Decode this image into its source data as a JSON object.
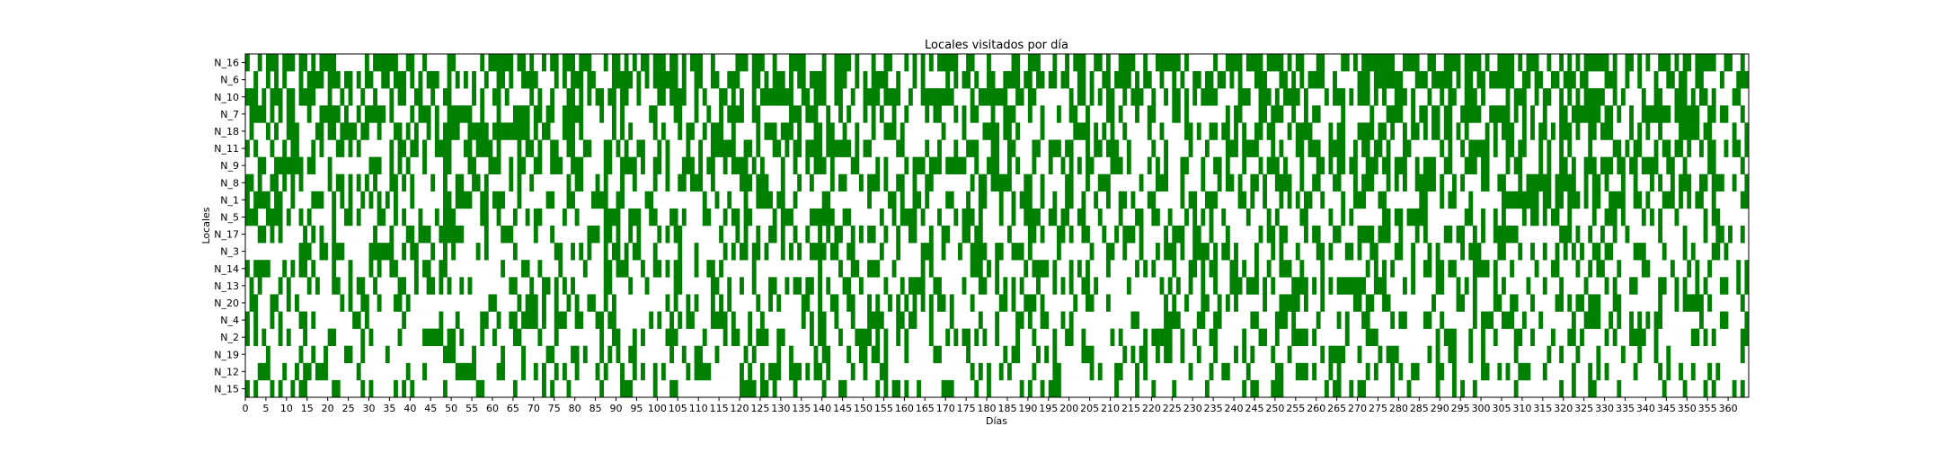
{
  "chart_data": {
    "type": "heatmap",
    "title": "Locales visitados por día",
    "xlabel": "Días",
    "ylabel": "Locales",
    "xlim": [
      0,
      365
    ],
    "x_ticks": [
      0,
      5,
      10,
      15,
      20,
      25,
      30,
      35,
      40,
      45,
      50,
      55,
      60,
      65,
      70,
      75,
      80,
      85,
      90,
      95,
      100,
      105,
      110,
      115,
      120,
      125,
      130,
      135,
      140,
      145,
      150,
      155,
      160,
      165,
      170,
      175,
      180,
      185,
      190,
      195,
      200,
      205,
      210,
      215,
      220,
      225,
      230,
      235,
      240,
      245,
      250,
      255,
      260,
      265,
      270,
      275,
      280,
      285,
      290,
      295,
      300,
      305,
      310,
      315,
      320,
      325,
      330,
      335,
      340,
      345,
      350,
      355,
      360
    ],
    "rows": [
      "N_16",
      "N_6",
      "N_10",
      "N_7",
      "N_18",
      "N_11",
      "N_9",
      "N_8",
      "N_1",
      "N_5",
      "N_17",
      "N_3",
      "N_14",
      "N_13",
      "N_20",
      "N_4",
      "N_2",
      "N_19",
      "N_12",
      "N_15"
    ],
    "visited_color": "#008000",
    "not_visited_color": "#ffffff",
    "visit_density": [
      0.55,
      0.52,
      0.52,
      0.5,
      0.46,
      0.45,
      0.42,
      0.41,
      0.4,
      0.38,
      0.37,
      0.36,
      0.36,
      0.35,
      0.34,
      0.33,
      0.31,
      0.3,
      0.29,
      0.28
    ],
    "grid": false,
    "legend": "none"
  }
}
